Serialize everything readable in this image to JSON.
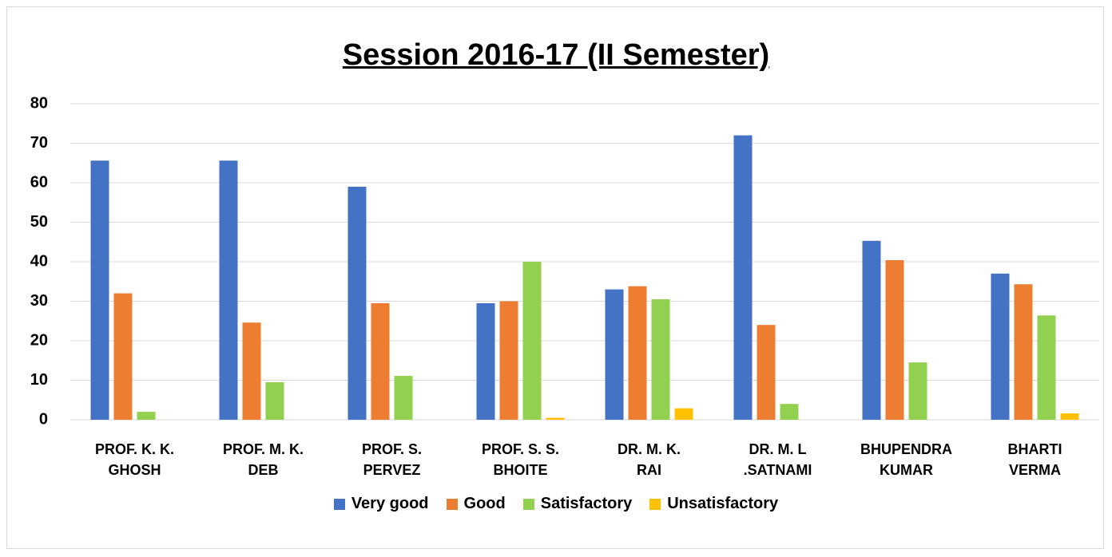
{
  "chart_data": {
    "type": "bar",
    "title": "Session 2016-17 (II Semester)",
    "categories": [
      "PROF. K. K.\nGHOSH",
      "PROF. M. K.\nDEB",
      "PROF. S.\nPERVEZ",
      "PROF. S. S.\nBHOITE",
      "DR. M. K.\nRAI",
      "DR. M. L\n.SATNAMI",
      "BHUPENDRA\nKUMAR",
      "BHARTI\nVERMA"
    ],
    "series": [
      {
        "name": "Very good",
        "color": "#4472c4",
        "values": [
          65.6,
          65.6,
          59,
          29.5,
          33,
          72,
          45.3,
          37
        ]
      },
      {
        "name": "Good",
        "color": "#ed7d31",
        "values": [
          32,
          24.6,
          29.5,
          30,
          33.8,
          24,
          40.4,
          34.3
        ]
      },
      {
        "name": "Satisfactory",
        "color": "#92d050",
        "values": [
          2,
          9.5,
          11.1,
          40,
          30.5,
          4,
          14.5,
          26.4
        ]
      },
      {
        "name": "Unsatisfactory",
        "color": "#ffc000",
        "values": [
          0,
          0,
          0,
          0.5,
          2.9,
          0,
          0,
          1.6
        ]
      }
    ],
    "ylim": [
      0,
      80
    ],
    "yticks": [
      0,
      10,
      20,
      30,
      40,
      50,
      60,
      70,
      80
    ],
    "grid": true,
    "legend": "bottom"
  }
}
